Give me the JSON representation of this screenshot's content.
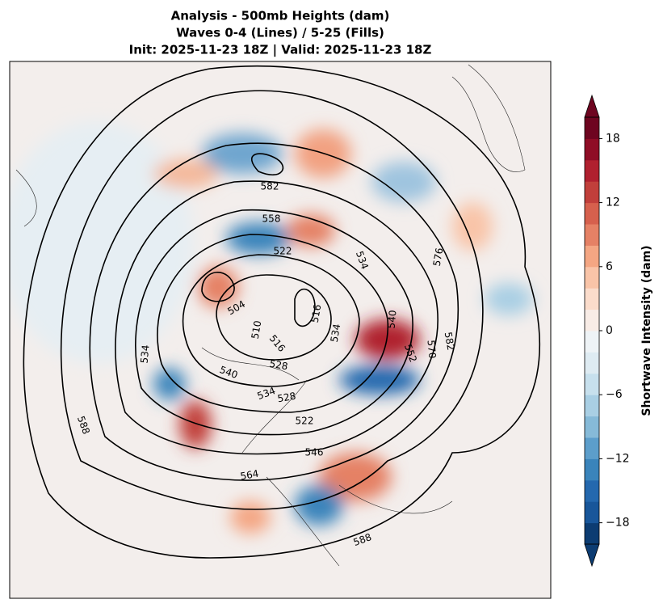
{
  "title": [
    "Analysis - 500mb Heights (dam)",
    "Waves 0-4 (Lines) / 5-25 (Fills)",
    "Init: 2025-11-23 18Z | Valid: 2025-11-23 18Z"
  ],
  "map": {
    "contour_labels": [
      "582",
      "558",
      "522",
      "504",
      "510",
      "516",
      "534",
      "540",
      "528",
      "534",
      "528",
      "522",
      "546",
      "564",
      "588",
      "588",
      "576",
      "582",
      "570",
      "552",
      "540",
      "534",
      "516",
      "534"
    ]
  },
  "colorbar": {
    "label": "Shortwave Intensity (dam)",
    "lim": [
      -20,
      20
    ],
    "ticks": [
      {
        "value": -18,
        "label": "−18"
      },
      {
        "value": -12,
        "label": "−12"
      },
      {
        "value": -6,
        "label": "−6"
      },
      0,
      6,
      12,
      18
    ],
    "colors": [
      "#0c3c72",
      "#18569a",
      "#2468ae",
      "#3a84bb",
      "#5c9ecb",
      "#86bad8",
      "#a9cfe4",
      "#c7e0ed",
      "#deebf2",
      "#eef3f6",
      "#f8ece6",
      "#fbdccb",
      "#f9c4a8",
      "#f4a683",
      "#e58165",
      "#d6604d",
      "#c13f3b",
      "#b0202f",
      "#8f0d26",
      "#6e0520"
    ]
  }
}
